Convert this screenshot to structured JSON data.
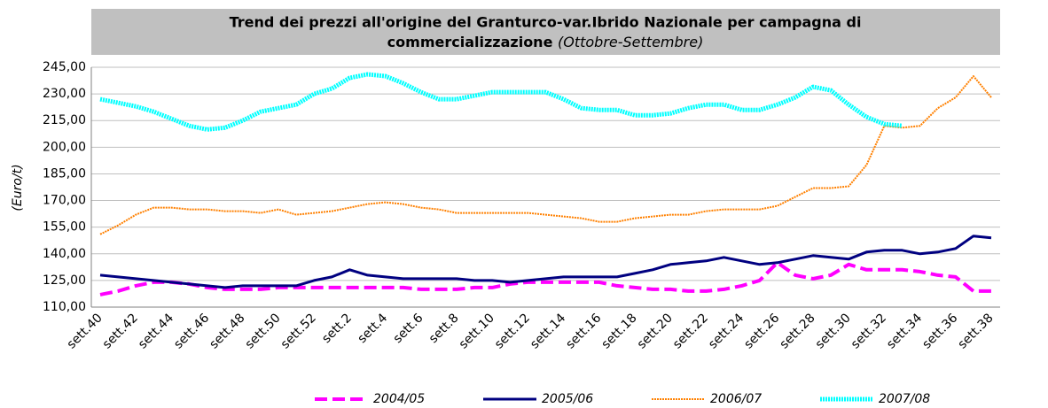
{
  "chart_data": {
    "type": "line",
    "title": [
      "Trend dei prezzi all'origine del Granturco-var.Ibrido Nazionale per campagna di",
      "commercializzazione"
    ],
    "title_note": "(Ottobre-Settembre)",
    "ylabel": "(Euro/t)",
    "categories": [
      "sett.40",
      null,
      "sett.42",
      null,
      "sett.44",
      null,
      "sett.46",
      null,
      "sett.48",
      null,
      "sett.50",
      null,
      "sett.52",
      null,
      "sett.2",
      null,
      "sett.4",
      null,
      "sett.6",
      null,
      "sett.8",
      null,
      "sett.10",
      null,
      "sett.12",
      null,
      "sett.14",
      null,
      "sett.16",
      null,
      "sett.18",
      null,
      "sett.20",
      null,
      "sett.22",
      null,
      "sett.24",
      null,
      "sett.26",
      null,
      "sett.28",
      null,
      "sett.30",
      null,
      "sett.32",
      null,
      "sett.34",
      null,
      "sett.36",
      null,
      "sett.38"
    ],
    "series": [
      {
        "name": "2004/05",
        "color": "#ff00ff",
        "style": "dashed",
        "values": [
          117,
          119,
          122,
          124,
          124,
          123,
          121,
          120,
          120,
          120,
          121,
          121,
          121,
          121,
          121,
          121,
          121,
          121,
          120,
          120,
          120,
          121,
          121,
          123,
          124,
          124,
          124,
          124,
          124,
          122,
          121,
          120,
          120,
          119,
          119,
          120,
          122,
          125,
          135,
          128,
          126,
          128,
          134,
          131,
          131,
          131,
          130,
          128,
          127,
          119,
          119
        ]
      },
      {
        "name": "2005/06",
        "color": "#000080",
        "style": "solid",
        "values": [
          128,
          127,
          126,
          125,
          124,
          123,
          122,
          121,
          122,
          122,
          122,
          122,
          125,
          127,
          131,
          128,
          127,
          126,
          126,
          126,
          126,
          125,
          125,
          124,
          125,
          126,
          127,
          127,
          127,
          127,
          129,
          131,
          134,
          135,
          136,
          138,
          136,
          134,
          135,
          137,
          139,
          138,
          137,
          141,
          142,
          142,
          140,
          141,
          143,
          150,
          149
        ]
      },
      {
        "name": "2006/07",
        "color": "#ff8000",
        "style": "dotted",
        "values": [
          151,
          156,
          162,
          166,
          166,
          165,
          165,
          164,
          164,
          163,
          165,
          162,
          163,
          164,
          166,
          168,
          169,
          168,
          166,
          165,
          163,
          163,
          163,
          163,
          163,
          162,
          161,
          160,
          158,
          158,
          160,
          161,
          162,
          162,
          164,
          165,
          165,
          165,
          167,
          172,
          177,
          177,
          178,
          190,
          212,
          211,
          212,
          222,
          228,
          240,
          228
        ]
      },
      {
        "name": "2007/08",
        "color": "#00ffff",
        "style": "dotted",
        "values": [
          227,
          225,
          223,
          220,
          216,
          212,
          210,
          211,
          215,
          220,
          222,
          224,
          230,
          233,
          239,
          241,
          240,
          236,
          231,
          227,
          227,
          229,
          231,
          231,
          231,
          231,
          227,
          222,
          221,
          221,
          218,
          218,
          219,
          222,
          224,
          224,
          221,
          221,
          224,
          228,
          234,
          232,
          224,
          217,
          213,
          212,
          null,
          null,
          null,
          null,
          null
        ]
      }
    ],
    "ylim": [
      110,
      245
    ],
    "yticks": [
      {
        "value": 110,
        "label": "110,00"
      },
      {
        "value": 125,
        "label": "125,00"
      },
      {
        "value": 140,
        "label": "140,00"
      },
      {
        "value": 155,
        "label": "155,00"
      },
      {
        "value": 170,
        "label": "170,00"
      },
      {
        "value": 185,
        "label": "185,00"
      },
      {
        "value": 200,
        "label": "200,00"
      },
      {
        "value": 215,
        "label": "215,00"
      },
      {
        "value": 230,
        "label": "230,00"
      },
      {
        "value": 245,
        "label": "245,00"
      }
    ],
    "grid": true,
    "legend": "bottom"
  }
}
